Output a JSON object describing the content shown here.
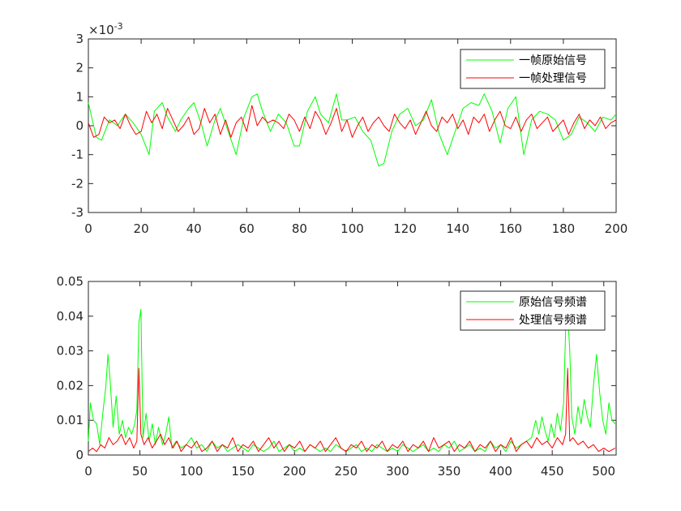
{
  "chart_data": [
    {
      "type": "line",
      "title": "",
      "xlabel": "",
      "ylabel": "",
      "xlim": [
        0,
        200
      ],
      "ylim": [
        -3,
        3
      ],
      "y_exponent_label": "×10",
      "y_exponent_power": "-3",
      "xticks": [
        "0",
        "20",
        "40",
        "60",
        "80",
        "100",
        "120",
        "140",
        "160",
        "180",
        "200"
      ],
      "yticks": [
        "3",
        "2",
        "1",
        "0",
        "-1",
        "-2",
        "-3"
      ],
      "grid": false,
      "legend_placement": "top-right",
      "series": [
        {
          "name": "一帧原始信号",
          "color": "#00ff00",
          "x": [
            0,
            3,
            5,
            8,
            11,
            14,
            17,
            20,
            23,
            25,
            28,
            30,
            33,
            35,
            38,
            40,
            43,
            45,
            48,
            50,
            53,
            56,
            59,
            62,
            64,
            66,
            69,
            72,
            75,
            78,
            80,
            83,
            86,
            88,
            91,
            94,
            96,
            98,
            101,
            104,
            107,
            110,
            112,
            115,
            118,
            121,
            124,
            127,
            130,
            133,
            136,
            139,
            142,
            145,
            148,
            150,
            153,
            156,
            159,
            162,
            165,
            168,
            171,
            174,
            177,
            180,
            183,
            186,
            189,
            192,
            195,
            198,
            200
          ],
          "y": [
            0.8,
            -0.4,
            -0.5,
            0.2,
            0.0,
            0.4,
            0.1,
            -0.3,
            -1.0,
            0.5,
            0.8,
            0.3,
            -0.2,
            0.2,
            0.6,
            0.8,
            0.0,
            -0.7,
            0.2,
            0.6,
            -0.2,
            -1.0,
            0.3,
            1.0,
            1.1,
            0.5,
            -0.2,
            0.4,
            0.1,
            -0.7,
            -0.7,
            0.5,
            1.0,
            0.4,
            0.1,
            1.1,
            0.2,
            0.2,
            0.3,
            -0.2,
            -0.5,
            -1.4,
            -1.3,
            -0.2,
            0.4,
            0.6,
            0.0,
            0.2,
            0.9,
            -0.3,
            -1.0,
            -0.2,
            0.6,
            0.8,
            0.7,
            1.1,
            0.5,
            -0.6,
            0.6,
            1.0,
            -1.0,
            0.2,
            0.5,
            0.4,
            0.2,
            -0.5,
            -0.3,
            0.3,
            0.1,
            -0.2,
            0.3,
            0.2,
            0.4
          ]
        },
        {
          "name": "一帧处理信号",
          "color": "#ff0000",
          "x": [
            0,
            2,
            4,
            6,
            8,
            10,
            12,
            14,
            16,
            18,
            20,
            22,
            24,
            26,
            28,
            30,
            32,
            34,
            36,
            38,
            40,
            42,
            44,
            46,
            48,
            50,
            52,
            54,
            56,
            58,
            60,
            62,
            64,
            66,
            68,
            70,
            72,
            74,
            76,
            78,
            80,
            82,
            84,
            86,
            88,
            90,
            92,
            94,
            96,
            98,
            100,
            102,
            104,
            106,
            108,
            110,
            112,
            114,
            116,
            118,
            120,
            122,
            124,
            126,
            128,
            130,
            132,
            134,
            136,
            138,
            140,
            142,
            144,
            146,
            148,
            150,
            152,
            154,
            156,
            158,
            160,
            162,
            164,
            166,
            168,
            170,
            172,
            174,
            176,
            178,
            180,
            182,
            184,
            186,
            188,
            190,
            192,
            194,
            196,
            198,
            200
          ],
          "y": [
            0.1,
            -0.4,
            -0.3,
            0.3,
            0.1,
            0.2,
            -0.1,
            0.4,
            0.0,
            -0.3,
            -0.2,
            0.5,
            0.1,
            0.4,
            -0.1,
            0.6,
            0.2,
            -0.2,
            0.0,
            0.3,
            -0.3,
            -0.1,
            0.6,
            0.1,
            0.4,
            -0.3,
            0.2,
            -0.4,
            0.1,
            0.3,
            -0.2,
            0.7,
            0.0,
            0.3,
            0.1,
            0.2,
            0.1,
            -0.1,
            0.4,
            0.2,
            -0.2,
            0.3,
            -0.1,
            0.5,
            0.2,
            -0.3,
            0.1,
            0.6,
            -0.2,
            0.2,
            -0.4,
            0.0,
            0.3,
            -0.2,
            0.1,
            0.3,
            0.0,
            -0.2,
            0.4,
            0.1,
            -0.1,
            0.2,
            -0.3,
            0.1,
            0.5,
            0.0,
            -0.2,
            0.3,
            0.1,
            0.4,
            -0.1,
            0.2,
            -0.3,
            0.3,
            0.1,
            0.4,
            -0.2,
            0.2,
            0.5,
            0.0,
            -0.1,
            0.3,
            -0.2,
            0.2,
            0.4,
            -0.1,
            0.1,
            0.3,
            -0.2,
            0.0,
            0.2,
            -0.3,
            0.1,
            0.4,
            -0.1,
            0.2,
            0.0,
            0.3,
            -0.1,
            0.1,
            0.2
          ]
        }
      ]
    },
    {
      "type": "line",
      "title": "",
      "xlabel": "",
      "ylabel": "",
      "xlim": [
        0,
        512
      ],
      "ylim": [
        0,
        0.05
      ],
      "xticks": [
        "0",
        "50",
        "100",
        "150",
        "200",
        "250",
        "300",
        "350",
        "400",
        "450",
        "500"
      ],
      "yticks": [
        "0.05",
        "0.04",
        "0.03",
        "0.02",
        "0.01",
        "0"
      ],
      "grid": false,
      "legend_placement": "top-right",
      "series": [
        {
          "name": "原始信号频谱",
          "color": "#00ff00",
          "x": [
            0,
            2,
            5,
            8,
            11,
            14,
            17,
            19,
            21,
            24,
            27,
            30,
            33,
            36,
            39,
            42,
            45,
            47,
            49,
            51,
            53,
            56,
            59,
            62,
            65,
            68,
            72,
            75,
            78,
            81,
            85,
            90,
            95,
            100,
            105,
            110,
            115,
            120,
            125,
            130,
            135,
            140,
            145,
            150,
            155,
            160,
            165,
            170,
            175,
            180,
            185,
            190,
            195,
            200,
            205,
            210,
            215,
            220,
            225,
            230,
            235,
            240,
            245,
            250,
            255,
            260,
            265,
            270,
            275,
            280,
            285,
            290,
            295,
            300,
            305,
            310,
            315,
            320,
            325,
            330,
            335,
            340,
            345,
            350,
            355,
            360,
            365,
            370,
            375,
            380,
            385,
            390,
            395,
            400,
            405,
            410,
            415,
            420,
            425,
            430,
            434,
            437,
            440,
            443,
            446,
            449,
            452,
            455,
            458,
            461,
            463,
            465,
            467,
            469,
            472,
            475,
            478,
            481,
            484,
            487,
            490,
            493,
            496,
            499,
            502,
            505,
            508,
            511
          ],
          "y": [
            0.004,
            0.015,
            0.01,
            0.009,
            0.003,
            0.012,
            0.02,
            0.029,
            0.022,
            0.008,
            0.017,
            0.006,
            0.01,
            0.005,
            0.008,
            0.006,
            0.009,
            0.013,
            0.038,
            0.042,
            0.005,
            0.012,
            0.004,
            0.009,
            0.003,
            0.008,
            0.003,
            0.006,
            0.011,
            0.002,
            0.004,
            0.002,
            0.003,
            0.005,
            0.002,
            0.003,
            0.001,
            0.004,
            0.002,
            0.003,
            0.001,
            0.002,
            0.003,
            0.002,
            0.001,
            0.003,
            0.002,
            0.001,
            0.002,
            0.004,
            0.001,
            0.002,
            0.003,
            0.001,
            0.002,
            0.001,
            0.003,
            0.002,
            0.001,
            0.002,
            0.001,
            0.003,
            0.002,
            0.001,
            0.002,
            0.003,
            0.001,
            0.002,
            0.001,
            0.003,
            0.002,
            0.001,
            0.002,
            0.001,
            0.003,
            0.002,
            0.001,
            0.002,
            0.003,
            0.001,
            0.002,
            0.001,
            0.003,
            0.002,
            0.004,
            0.001,
            0.002,
            0.003,
            0.001,
            0.002,
            0.001,
            0.004,
            0.002,
            0.003,
            0.001,
            0.004,
            0.002,
            0.003,
            0.004,
            0.005,
            0.01,
            0.006,
            0.011,
            0.007,
            0.004,
            0.009,
            0.005,
            0.012,
            0.007,
            0.015,
            0.036,
            0.041,
            0.03,
            0.011,
            0.006,
            0.014,
            0.009,
            0.016,
            0.011,
            0.008,
            0.02,
            0.029,
            0.018,
            0.01,
            0.006,
            0.015,
            0.01,
            0.009
          ]
        },
        {
          "name": "处理信号频谱",
          "color": "#ff0000",
          "x": [
            0,
            4,
            8,
            12,
            16,
            20,
            24,
            28,
            32,
            36,
            40,
            44,
            47,
            49,
            51,
            54,
            58,
            62,
            66,
            70,
            74,
            78,
            82,
            86,
            90,
            95,
            100,
            105,
            110,
            115,
            120,
            125,
            130,
            135,
            140,
            145,
            150,
            155,
            160,
            165,
            170,
            175,
            180,
            185,
            190,
            195,
            200,
            205,
            210,
            215,
            220,
            225,
            230,
            235,
            240,
            245,
            250,
            255,
            260,
            265,
            270,
            275,
            280,
            285,
            290,
            295,
            300,
            305,
            310,
            315,
            320,
            325,
            330,
            335,
            340,
            345,
            350,
            355,
            360,
            365,
            370,
            375,
            380,
            385,
            390,
            395,
            400,
            405,
            410,
            415,
            420,
            425,
            430,
            435,
            440,
            445,
            450,
            455,
            460,
            463,
            465,
            467,
            470,
            475,
            480,
            485,
            490,
            495,
            500,
            505,
            511
          ],
          "y": [
            0.001,
            0.002,
            0.001,
            0.003,
            0.002,
            0.005,
            0.003,
            0.004,
            0.006,
            0.003,
            0.005,
            0.002,
            0.004,
            0.025,
            0.006,
            0.003,
            0.005,
            0.002,
            0.004,
            0.006,
            0.003,
            0.005,
            0.002,
            0.004,
            0.001,
            0.003,
            0.002,
            0.004,
            0.001,
            0.002,
            0.004,
            0.001,
            0.003,
            0.002,
            0.005,
            0.001,
            0.003,
            0.002,
            0.004,
            0.001,
            0.003,
            0.005,
            0.002,
            0.004,
            0.001,
            0.003,
            0.002,
            0.004,
            0.001,
            0.003,
            0.002,
            0.004,
            0.001,
            0.003,
            0.005,
            0.002,
            0.001,
            0.003,
            0.002,
            0.004,
            0.001,
            0.003,
            0.002,
            0.004,
            0.001,
            0.003,
            0.002,
            0.004,
            0.001,
            0.003,
            0.002,
            0.004,
            0.001,
            0.005,
            0.002,
            0.003,
            0.004,
            0.001,
            0.003,
            0.002,
            0.004,
            0.001,
            0.003,
            0.002,
            0.004,
            0.001,
            0.003,
            0.002,
            0.005,
            0.001,
            0.003,
            0.004,
            0.002,
            0.005,
            0.003,
            0.004,
            0.002,
            0.005,
            0.003,
            0.006,
            0.025,
            0.004,
            0.005,
            0.003,
            0.004,
            0.002,
            0.003,
            0.001,
            0.002,
            0.001,
            0.002
          ]
        }
      ]
    }
  ]
}
